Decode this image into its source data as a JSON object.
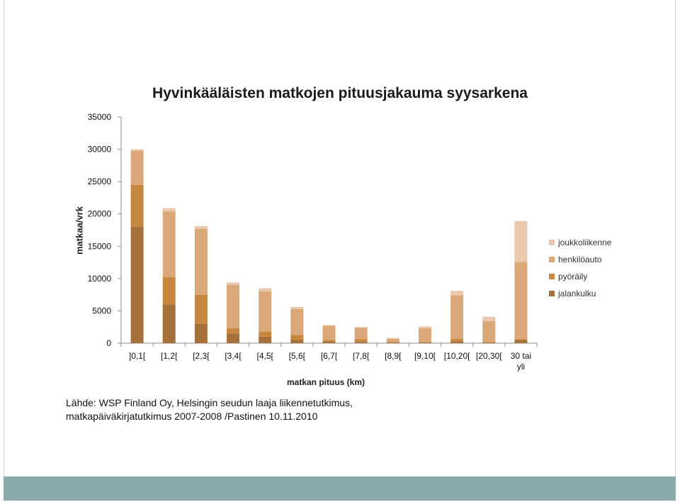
{
  "chart_data": {
    "type": "bar",
    "stacked": true,
    "title": "Hyvinkääläisten matkojen pituusjakauma syysarkena",
    "ylabel": "matkaa/vrk",
    "xlabel": "matkan pituus (km)",
    "ylim": [
      0,
      35000
    ],
    "yticks": [
      "0",
      "5000",
      "10000",
      "15000",
      "20000",
      "25000",
      "30000",
      "35000"
    ],
    "grid": false,
    "legend_position": "right",
    "categories": [
      "]0,1[",
      "[1,2[",
      "[2,3[",
      "[3,4[",
      "[4,5[",
      "[5,6[",
      "[6,7[",
      "[7,8[",
      "[8,9[",
      "[9,10[",
      "[10,20[",
      "[20,30[",
      "30 tai yli"
    ],
    "series": [
      {
        "name": "jalankulku",
        "color": "#a6703b",
        "values": [
          18000,
          6000,
          3000,
          1500,
          1000,
          500,
          300,
          200,
          100,
          100,
          300,
          100,
          500
        ]
      },
      {
        "name": "pyöräily",
        "color": "#c8873e",
        "values": [
          6500,
          4200,
          4500,
          800,
          800,
          800,
          200,
          400,
          100,
          100,
          400,
          100,
          100
        ]
      },
      {
        "name": "henkilöauto",
        "color": "#dba87a",
        "values": [
          5300,
          10200,
          10200,
          6700,
          6200,
          4000,
          2200,
          1800,
          500,
          2100,
          6700,
          3200,
          12000
        ]
      },
      {
        "name": "joukkoliikenne",
        "color": "#ebc8ad",
        "values": [
          200,
          500,
          400,
          400,
          500,
          300,
          100,
          100,
          100,
          300,
          700,
          700,
          6300
        ]
      }
    ]
  },
  "source_lines": [
    "Lähde: WSP Finland Oy, Helsingin seudun laaja liikennetutkimus,",
    "matkapäiväkirjatutkimus 2007-2008 /Pastinen 10.11.2010"
  ]
}
